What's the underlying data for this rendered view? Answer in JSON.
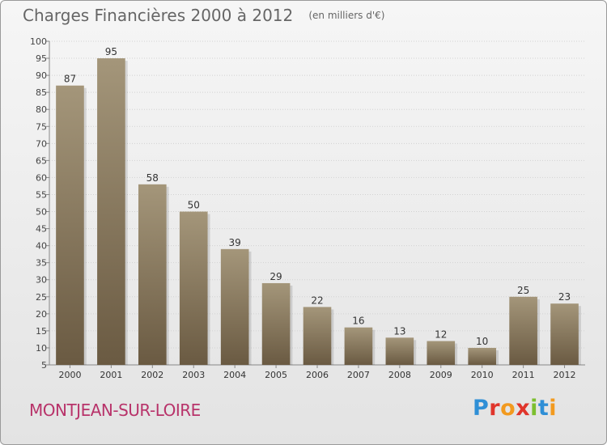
{
  "chart_data": {
    "type": "bar",
    "title": "Charges Financières 2000 à 2012",
    "subtitle": "(en milliers d'€)",
    "categories": [
      "2000",
      "2001",
      "2002",
      "2003",
      "2004",
      "2005",
      "2006",
      "2007",
      "2008",
      "2009",
      "2010",
      "2011",
      "2012"
    ],
    "values": [
      87,
      95,
      58,
      50,
      39,
      29,
      22,
      16,
      13,
      12,
      10,
      25,
      23
    ],
    "ylim": [
      5,
      100
    ],
    "yticks": [
      5,
      10,
      15,
      20,
      25,
      30,
      35,
      40,
      45,
      50,
      55,
      60,
      65,
      70,
      75,
      80,
      85,
      90,
      95,
      100
    ],
    "grid": true,
    "bar_color": "#8a7a5e",
    "data_labels": true
  },
  "footer": {
    "commune": "MONTJEAN-SUR-LOIRE",
    "brand": "Proxiti"
  },
  "colors": {
    "title": "#666666",
    "commune": "#b8336a",
    "brand_letters": [
      "#2f8fd6",
      "#e0352b",
      "#f29a1f",
      "#e0352b",
      "#7cbf2f",
      "#2f8fd6",
      "#f29a1f"
    ]
  }
}
